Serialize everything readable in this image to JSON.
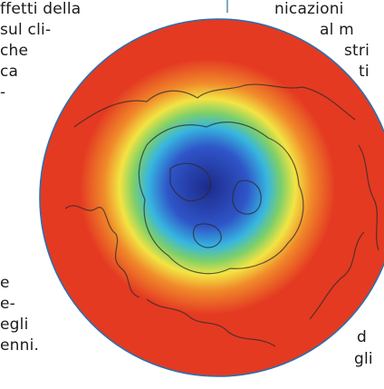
{
  "left_column": {
    "lines": [
      "ffetti della",
      "sul cli-",
      "che",
      "ca",
      "-",
      "e",
      "e-",
      "egli",
      "enni."
    ]
  },
  "right_column": {
    "lines": [
      "nicazioni",
      "al  m",
      "stri",
      "ti",
      "d",
      "gli"
    ]
  },
  "figure": {
    "type": "polar-ozone-map",
    "colors": {
      "center": "#1d2a8a",
      "inner": "#2f55c8",
      "cyan": "#37b6e0",
      "green": "#7ccf6a",
      "yellow": "#f3e443",
      "orange": "#f08a2a",
      "outer": "#e43a22",
      "rim": "#2a6fae"
    }
  }
}
